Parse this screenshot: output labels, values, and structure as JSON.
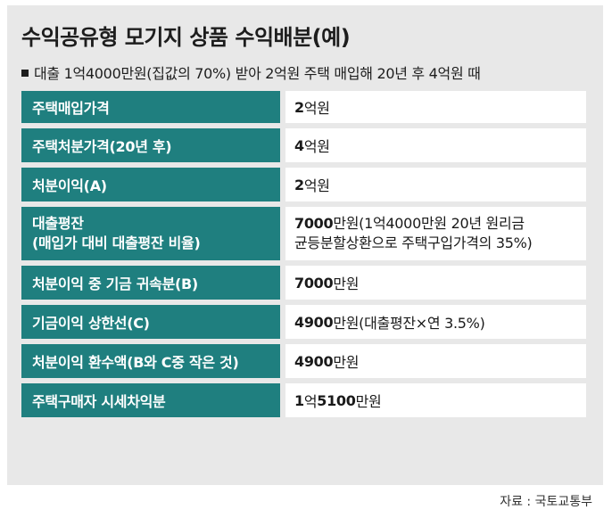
{
  "title": "수익공유형 모기지 상품 수익배분(예)",
  "subtitle": "대출 1억4000만원(집값의 70%) 받아 2억원 주택 매입해 20년 후 4억원 때",
  "rows": [
    {
      "label": "주택매입가격",
      "value_num": "2",
      "value_rest": "억원"
    },
    {
      "label": "주택처분가격(20년 후)",
      "value_num": "4",
      "value_rest": "억원"
    },
    {
      "label": "처분이익(A)",
      "value_num": "2",
      "value_rest": "억원"
    },
    {
      "label_line1": "대출평잔",
      "label_line2": "(매입가 대비 대출평잔 비율)",
      "value_num": "7000",
      "value_line1_rest": "만원(1억4000만원 20년 원리금",
      "value_line2": "균등분할상환으로 주택구입가격의 35%)"
    },
    {
      "label": "처분이익 중 기금 귀속분(B)",
      "value_num": "7000",
      "value_rest": "만원"
    },
    {
      "label": "기금이익 상한선(C)",
      "value_num": "4900",
      "value_rest": "만원(대출평잔×연 3.5%)"
    },
    {
      "label": "처분이익 환수액(B와 C중 작은 것)",
      "value_num": "4900",
      "value_rest": "만원"
    },
    {
      "label": "주택구매자 시세차익분",
      "value_num_a": "1",
      "value_mid": "억",
      "value_num_b": "5100",
      "value_rest": "만원"
    }
  ],
  "source": "자료 : 국토교통부"
}
